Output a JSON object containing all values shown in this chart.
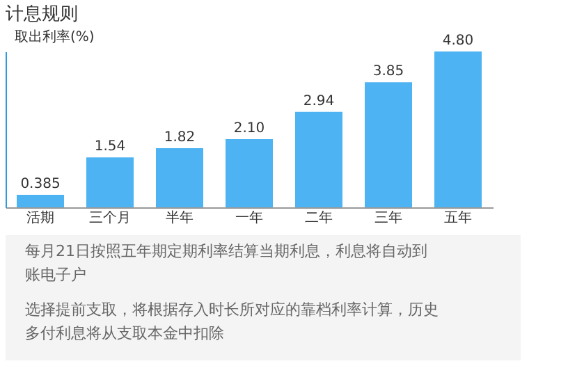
{
  "chart_data": {
    "type": "bar",
    "title": "计息规则",
    "ylabel": "取出利率(%)",
    "categories": [
      "活期",
      "三个月",
      "半年",
      "一年",
      "二年",
      "三年",
      "五年"
    ],
    "values": [
      0.385,
      1.54,
      1.82,
      2.1,
      2.94,
      3.85,
      4.8
    ],
    "value_labels": [
      "0.385",
      "1.54",
      "1.82",
      "2.10",
      "2.94",
      "3.85",
      "4.80"
    ],
    "color": "#4db3f2",
    "tick_labels": "x",
    "grid": false,
    "annotations": [
      "每月21日按照五年期定期利率结算当期利息，利息将自动到账电子户",
      "选择提前支取，将根据存入时长所对应的靠档利率计算，历史多付利息将从支取本金中扣除"
    ]
  }
}
